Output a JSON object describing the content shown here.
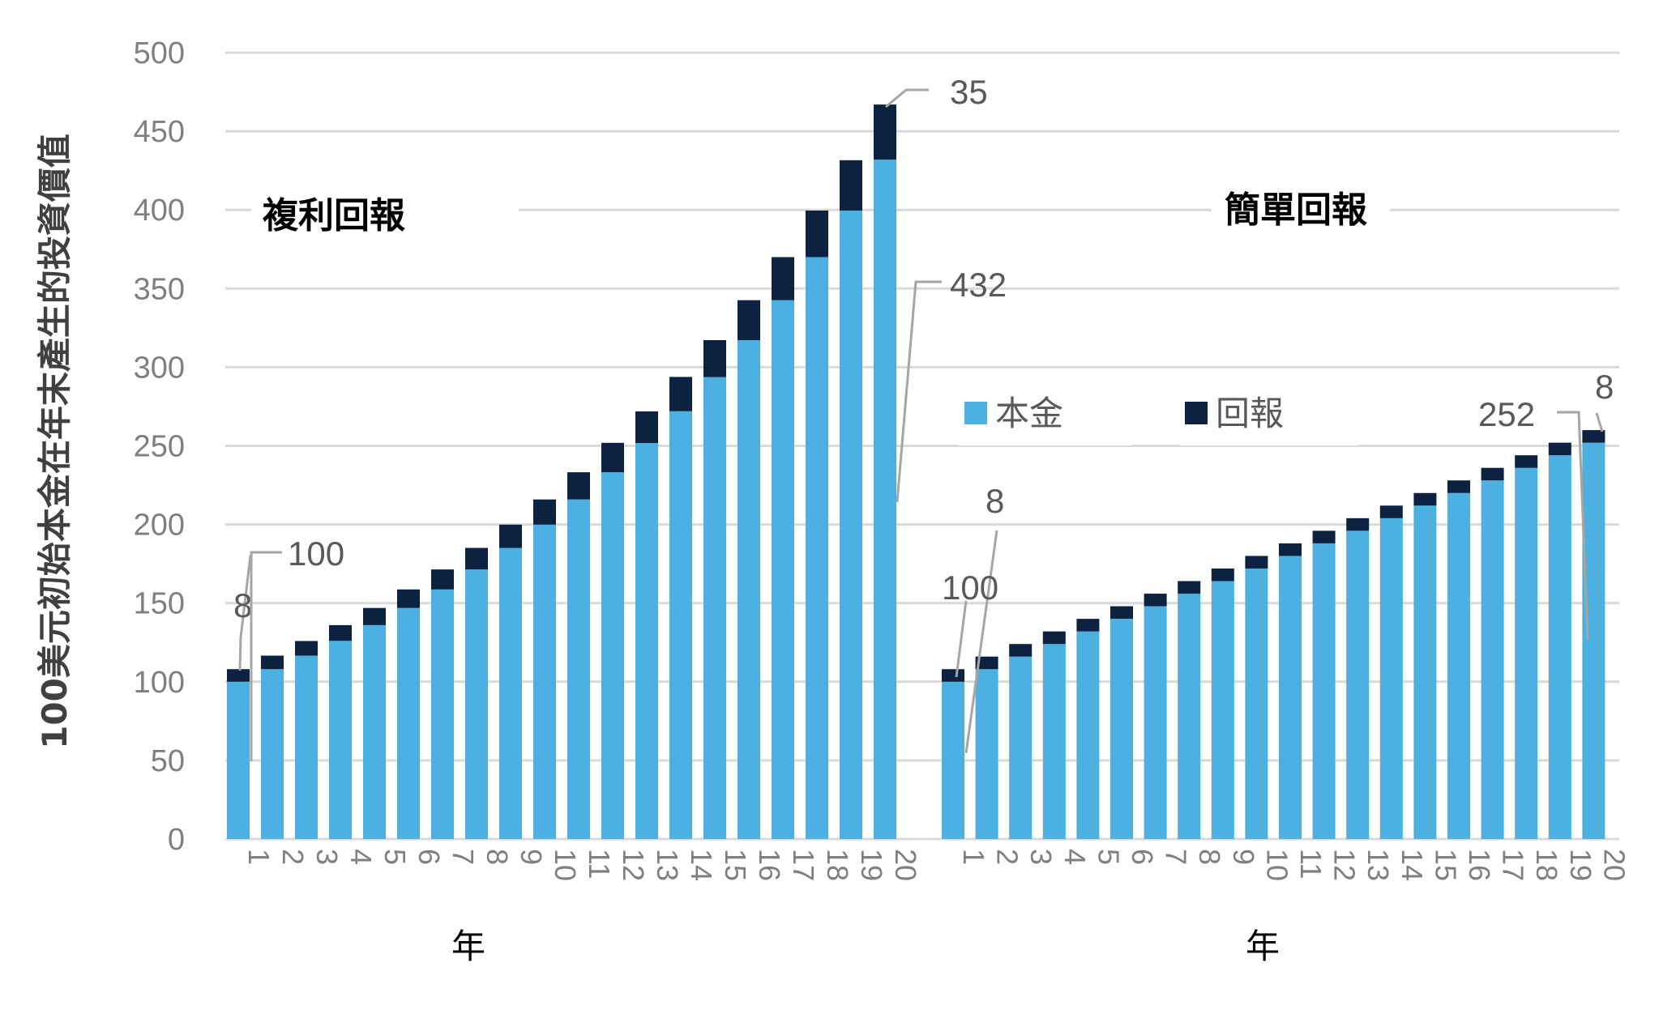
{
  "chart_data": {
    "type": "bar",
    "stacked": true,
    "ylabel": "100美元初始本金在年末產生的投資價值",
    "ylim": [
      0,
      500
    ],
    "yticks": [
      0,
      50,
      100,
      150,
      200,
      250,
      300,
      350,
      400,
      450,
      500
    ],
    "grid": true,
    "legend": [
      {
        "name": "本金",
        "color": "#4cb0e0"
      },
      {
        "name": "回報",
        "color": "#0d2140"
      }
    ],
    "legend_position": "center",
    "panels": [
      {
        "title": "複利回報",
        "xlabel": "年",
        "categories": [
          "1",
          "2",
          "3",
          "4",
          "5",
          "6",
          "7",
          "8",
          "9",
          "10",
          "11",
          "12",
          "13",
          "14",
          "15",
          "16",
          "17",
          "18",
          "19",
          "20"
        ],
        "series": [
          {
            "name": "本金",
            "values": [
              100,
              108,
              116.6,
              126,
              136,
              146.9,
              158.7,
              171.4,
              185.1,
              199.9,
              215.9,
              233.2,
              251.8,
              272,
              293.7,
              317.2,
              342.6,
              370,
              399.6,
              432
            ]
          },
          {
            "name": "回報",
            "values": [
              8,
              8.6,
              9.3,
              10,
              10.9,
              11.8,
              12.7,
              13.7,
              14.8,
              16,
              17.3,
              18.7,
              20.1,
              21.8,
              23.5,
              25.4,
              27.4,
              29.6,
              32,
              35
            ]
          }
        ],
        "annotations": [
          {
            "text": "8",
            "target": "year 1 回報"
          },
          {
            "text": "100",
            "target": "year 1 本金"
          },
          {
            "text": "35",
            "target": "year 20 回報"
          },
          {
            "text": "432",
            "target": "year 20 本金"
          }
        ]
      },
      {
        "title": "簡單回報",
        "xlabel": "年",
        "categories": [
          "1",
          "2",
          "3",
          "4",
          "5",
          "6",
          "7",
          "8",
          "9",
          "10",
          "11",
          "12",
          "13",
          "14",
          "15",
          "16",
          "17",
          "18",
          "19",
          "20"
        ],
        "series": [
          {
            "name": "本金",
            "values": [
              100,
              108,
              116,
              124,
              132,
              140,
              148,
              156,
              164,
              172,
              180,
              188,
              196,
              204,
              212,
              220,
              228,
              236,
              244,
              252
            ]
          },
          {
            "name": "回報",
            "values": [
              8,
              8,
              8,
              8,
              8,
              8,
              8,
              8,
              8,
              8,
              8,
              8,
              8,
              8,
              8,
              8,
              8,
              8,
              8,
              8
            ]
          }
        ],
        "annotations": [
          {
            "text": "8",
            "target": "year 1 回報"
          },
          {
            "text": "100",
            "target": "year 1 本金"
          },
          {
            "text": "252",
            "target": "year 20 本金"
          },
          {
            "text": "8",
            "target": "year 20 回報"
          }
        ]
      }
    ]
  }
}
